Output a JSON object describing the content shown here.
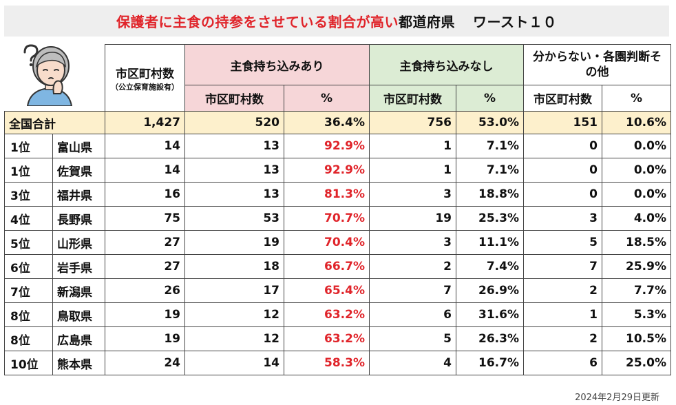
{
  "title": {
    "red_part": "保護者に主食の持参をさせている割合が高い",
    "black_part": "都道府県",
    "suffix": "ワースト１０"
  },
  "header": {
    "municipalities": "市区町村数",
    "municipalities_note": "（公立保育施設有）",
    "with_staple": "主食持ち込みあり",
    "without_staple": "主食持ち込みなし",
    "unknown": "分からない・各園判断その他",
    "sub_count": "市区町村数",
    "sub_pct": "%"
  },
  "total": {
    "label": "全国合計",
    "municipalities": "1,427",
    "with_count": "520",
    "with_pct": "36.4%",
    "without_count": "756",
    "without_pct": "53.0%",
    "unknown_count": "151",
    "unknown_pct": "10.6%"
  },
  "rows": [
    {
      "rank": "1位",
      "pref": "富山県",
      "municipalities": "14",
      "with_count": "13",
      "with_pct": "92.9%",
      "without_count": "1",
      "without_pct": "7.1%",
      "unknown_count": "0",
      "unknown_pct": "0.0%"
    },
    {
      "rank": "1位",
      "pref": "佐賀県",
      "municipalities": "14",
      "with_count": "13",
      "with_pct": "92.9%",
      "without_count": "1",
      "without_pct": "7.1%",
      "unknown_count": "0",
      "unknown_pct": "0.0%"
    },
    {
      "rank": "3位",
      "pref": "福井県",
      "municipalities": "16",
      "with_count": "13",
      "with_pct": "81.3%",
      "without_count": "3",
      "without_pct": "18.8%",
      "unknown_count": "0",
      "unknown_pct": "0.0%"
    },
    {
      "rank": "4位",
      "pref": "長野県",
      "municipalities": "75",
      "with_count": "53",
      "with_pct": "70.7%",
      "without_count": "19",
      "without_pct": "25.3%",
      "unknown_count": "3",
      "unknown_pct": "4.0%"
    },
    {
      "rank": "5位",
      "pref": "山形県",
      "municipalities": "27",
      "with_count": "19",
      "with_pct": "70.4%",
      "without_count": "3",
      "without_pct": "11.1%",
      "unknown_count": "5",
      "unknown_pct": "18.5%"
    },
    {
      "rank": "6位",
      "pref": "岩手県",
      "municipalities": "27",
      "with_count": "18",
      "with_pct": "66.7%",
      "without_count": "2",
      "without_pct": "7.4%",
      "unknown_count": "7",
      "unknown_pct": "25.9%"
    },
    {
      "rank": "7位",
      "pref": "新潟県",
      "municipalities": "26",
      "with_count": "17",
      "with_pct": "65.4%",
      "without_count": "7",
      "without_pct": "26.9%",
      "unknown_count": "2",
      "unknown_pct": "7.7%"
    },
    {
      "rank": "8位",
      "pref": "鳥取県",
      "municipalities": "19",
      "with_count": "12",
      "with_pct": "63.2%",
      "without_count": "6",
      "without_pct": "31.6%",
      "unknown_count": "1",
      "unknown_pct": "5.3%"
    },
    {
      "rank": "8位",
      "pref": "広島県",
      "municipalities": "19",
      "with_count": "12",
      "with_pct": "63.2%",
      "without_count": "5",
      "without_pct": "26.3%",
      "unknown_count": "2",
      "unknown_pct": "10.5%"
    },
    {
      "rank": "10位",
      "pref": "熊本県",
      "municipalities": "24",
      "with_count": "14",
      "with_pct": "58.3%",
      "without_count": "4",
      "without_pct": "16.7%",
      "unknown_count": "6",
      "unknown_pct": "25.0%"
    }
  ],
  "footer": "2024年2月29日更新",
  "colors": {
    "title_red": "#e0242a",
    "pct_red": "#e0242a",
    "pink_header": "#f6d6d8",
    "green_header": "#dcecd4",
    "total_row": "#fdf0cc",
    "title_bg": "#eeeeee"
  }
}
